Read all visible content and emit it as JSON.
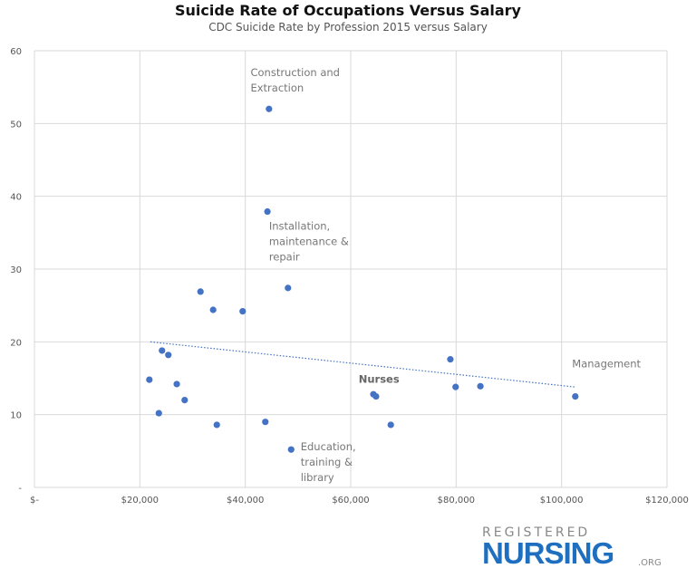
{
  "chart_data": {
    "type": "scatter",
    "title": "Suicide Rate of Occupations Versus Salary",
    "subtitle": "CDC Suicide Rate by Profession 2015 versus Salary",
    "xlabel": "",
    "ylabel": "",
    "xlim": [
      0,
      120000
    ],
    "ylim": [
      0,
      60
    ],
    "x_ticks": [
      0,
      20000,
      40000,
      60000,
      80000,
      100000,
      120000
    ],
    "x_tick_labels": [
      "$-",
      "$20,000",
      "$40,000",
      "$60,000",
      "$80,000",
      "$100,000",
      "$120,000"
    ],
    "y_ticks": [
      0,
      10,
      20,
      30,
      40,
      50,
      60
    ],
    "y_tick_labels": [
      "-",
      "10",
      "20",
      "30",
      "40",
      "50",
      "60"
    ],
    "grid": true,
    "point_color": "#4472c4",
    "points": [
      {
        "x": 44500,
        "y": 52.0
      },
      {
        "x": 44200,
        "y": 37.9
      },
      {
        "x": 48100,
        "y": 27.4
      },
      {
        "x": 31500,
        "y": 26.9
      },
      {
        "x": 33900,
        "y": 24.4
      },
      {
        "x": 39500,
        "y": 24.2
      },
      {
        "x": 24200,
        "y": 18.8
      },
      {
        "x": 25400,
        "y": 18.2
      },
      {
        "x": 21800,
        "y": 14.8
      },
      {
        "x": 27000,
        "y": 14.2
      },
      {
        "x": 28500,
        "y": 12.0
      },
      {
        "x": 23600,
        "y": 10.2
      },
      {
        "x": 34600,
        "y": 8.6
      },
      {
        "x": 43800,
        "y": 9.0
      },
      {
        "x": 48700,
        "y": 5.2
      },
      {
        "x": 64300,
        "y": 12.8
      },
      {
        "x": 64800,
        "y": 12.5
      },
      {
        "x": 67600,
        "y": 8.6
      },
      {
        "x": 78900,
        "y": 17.6
      },
      {
        "x": 79900,
        "y": 13.8
      },
      {
        "x": 84600,
        "y": 13.9
      },
      {
        "x": 102600,
        "y": 12.5
      }
    ],
    "trendline": {
      "style": "dotted",
      "from": {
        "x": 22000,
        "y": 20.0
      },
      "to": {
        "x": 102500,
        "y": 13.8
      }
    },
    "annotations": [
      {
        "lines": [
          "Construction and",
          "Extraction"
        ],
        "x": 41000,
        "y": 56.5,
        "bold": false
      },
      {
        "lines": [
          "Installation,",
          "maintenance &",
          "repair"
        ],
        "x": 44500,
        "y": 35.4,
        "bold": false
      },
      {
        "lines": [
          "Education,",
          "training &",
          "library"
        ],
        "x": 50500,
        "y": 5.1,
        "bold": false
      },
      {
        "lines": [
          "Nurses"
        ],
        "x": 61500,
        "y": 14.4,
        "bold": true
      },
      {
        "lines": [
          "Management"
        ],
        "x": 102000,
        "y": 16.5,
        "bold": false
      }
    ]
  },
  "logo": {
    "top": "REGISTERED",
    "main": "NURSING",
    "suffix": ".ORG"
  }
}
